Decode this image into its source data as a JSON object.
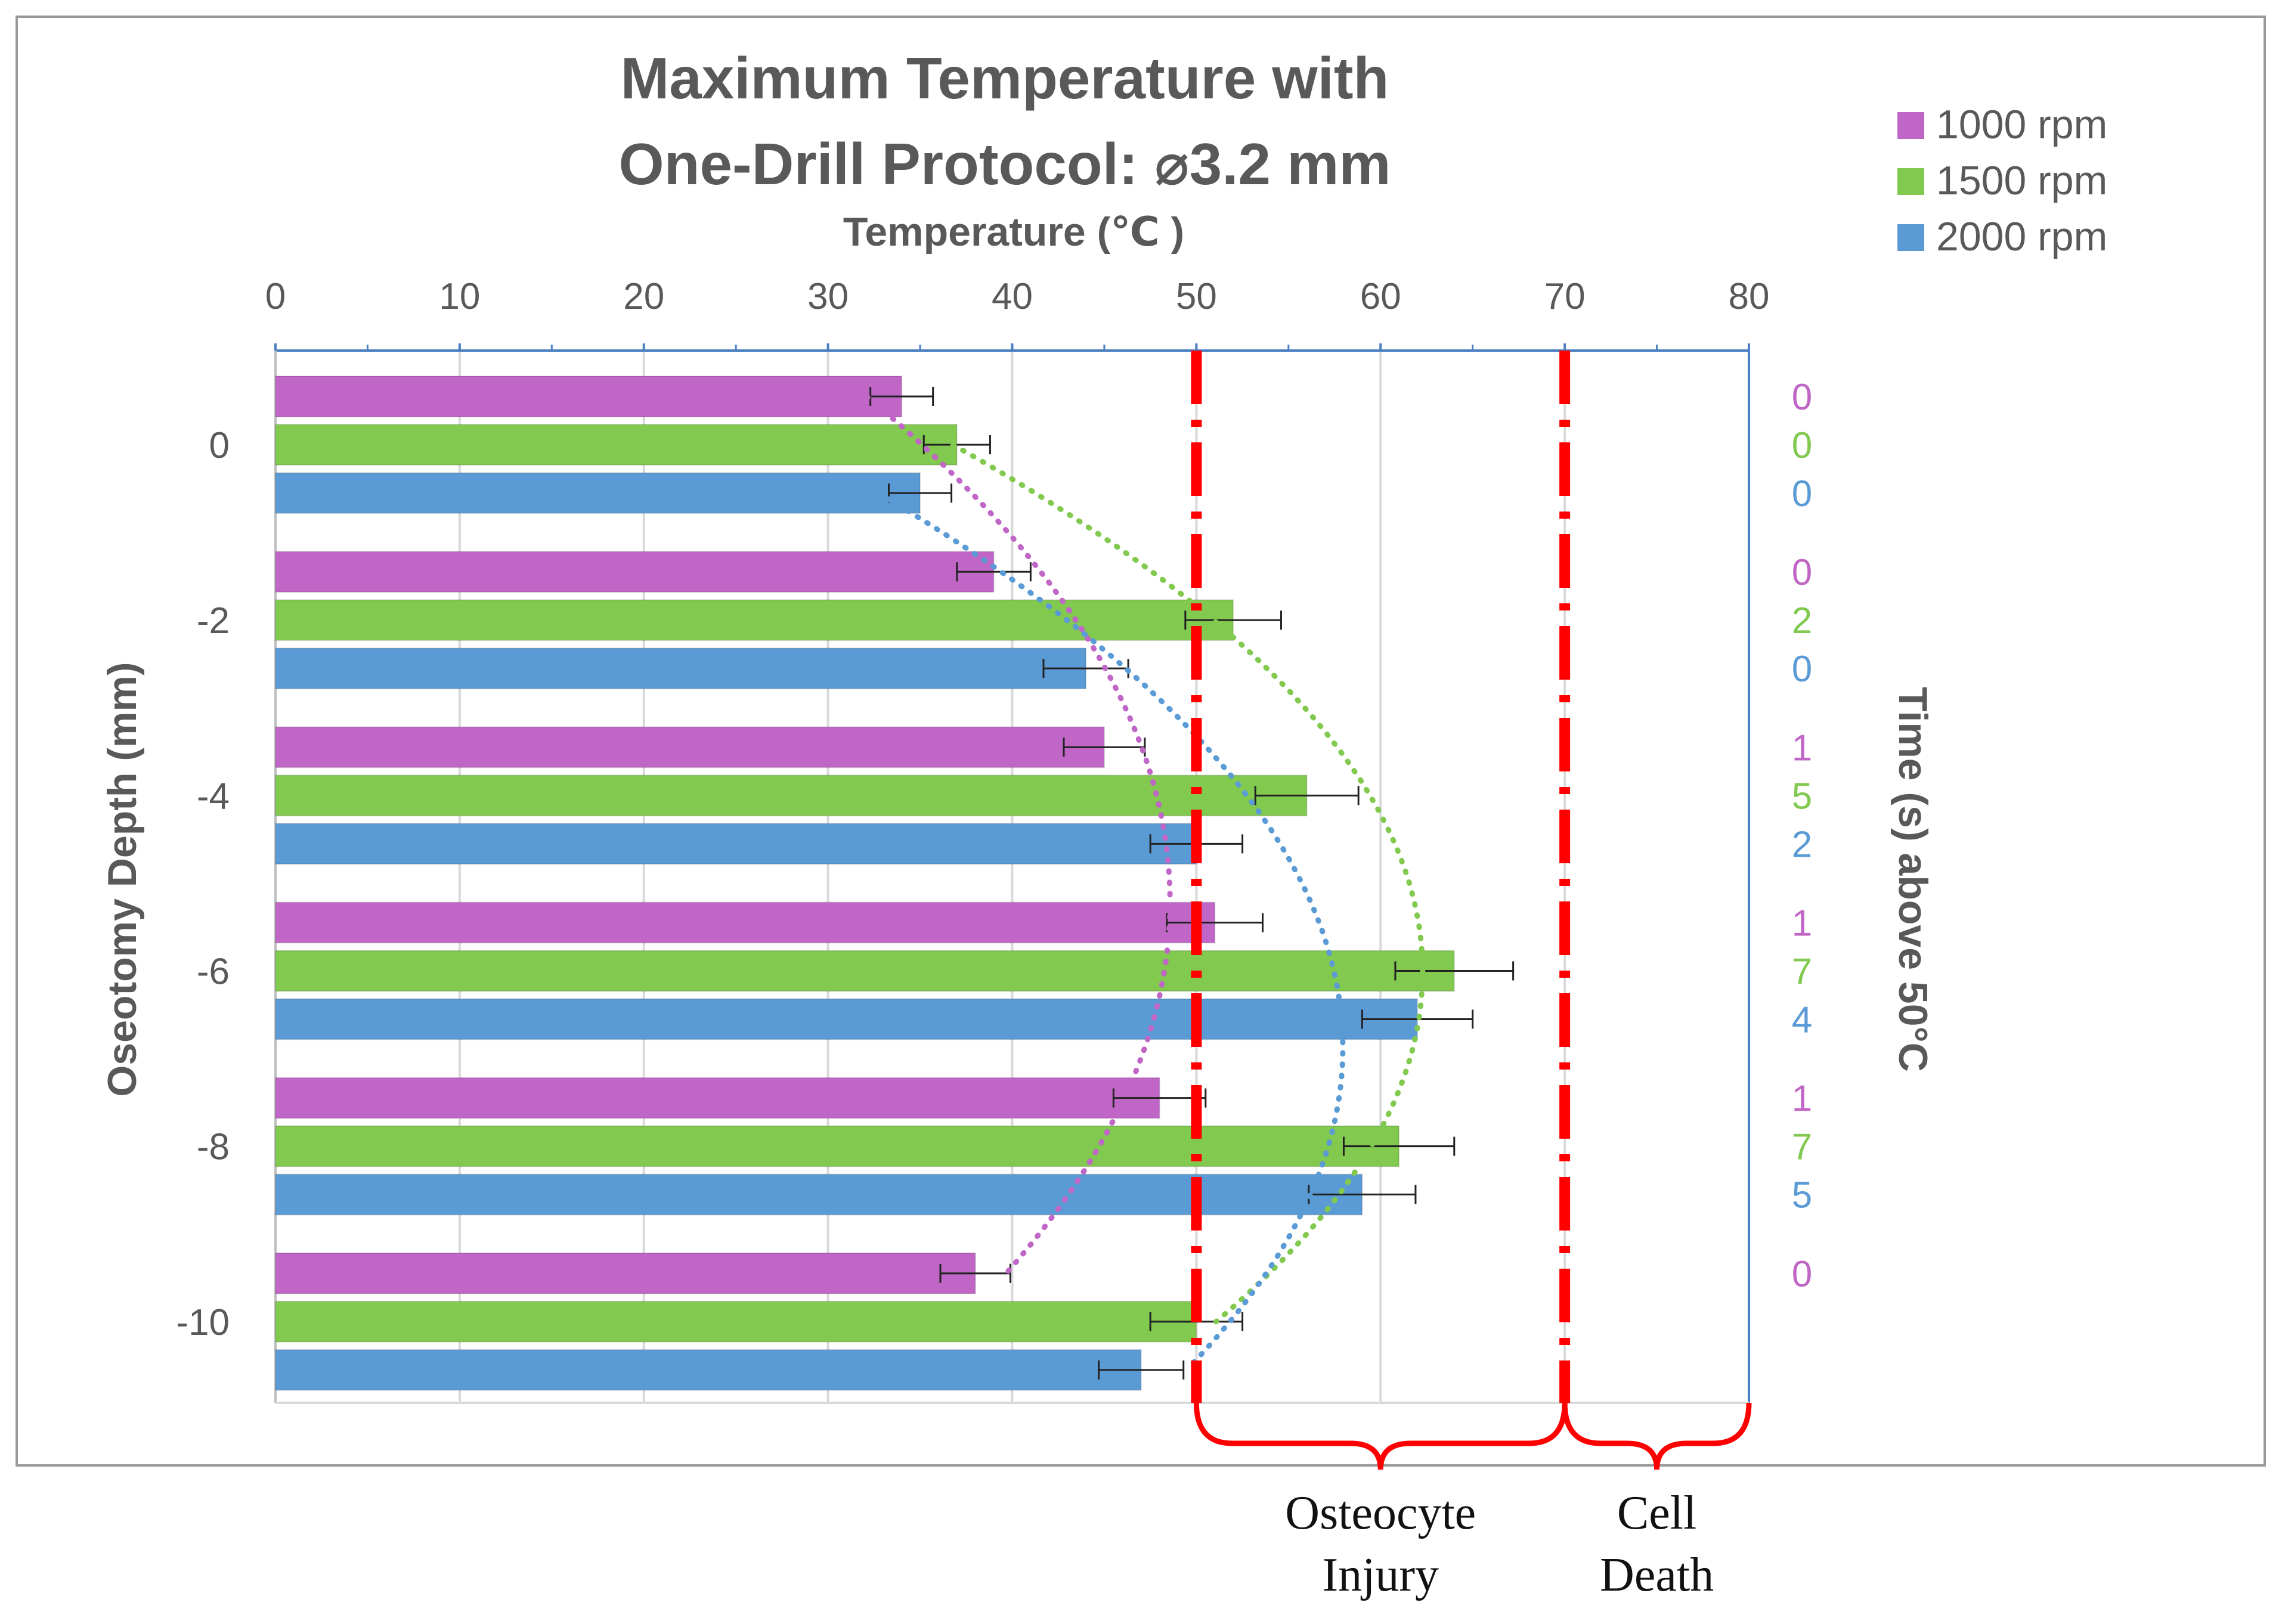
{
  "chart_data": {
    "type": "bar",
    "orientation": "horizontal",
    "title_lines": [
      "Maximum Temperature with",
      "One-Drill Protocol: ⌀3.2 mm"
    ],
    "xlabel": "Temperature (℃ )",
    "ylabel": "Oseotomy Depth (mm)",
    "right_axis_label": "Time (s) above 50°C",
    "xlim": [
      0,
      80
    ],
    "x_ticks": [
      "0",
      "10",
      "20",
      "30",
      "40",
      "50",
      "60",
      "70",
      "80"
    ],
    "categories": [
      "0",
      "-2",
      "-4",
      "-6",
      "-8",
      "-10"
    ],
    "series": [
      {
        "name": "1000 rpm",
        "color": "#c066c6",
        "values": [
          34,
          39,
          45,
          51,
          48,
          38
        ],
        "errors": [
          1.7,
          2.0,
          2.2,
          2.6,
          2.5,
          1.9
        ],
        "time_above_50": [
          "0",
          "0",
          "1",
          "1",
          "1",
          "0"
        ]
      },
      {
        "name": "1500 rpm",
        "color": "#82c94f",
        "values": [
          37,
          52,
          56,
          64,
          61,
          50
        ],
        "errors": [
          1.8,
          2.6,
          2.8,
          3.2,
          3.0,
          2.5
        ],
        "time_above_50": [
          "0",
          "2",
          "5",
          "7",
          "7",
          ""
        ]
      },
      {
        "name": "2000 rpm",
        "color": "#5b9bd5",
        "values": [
          35,
          44,
          50,
          62,
          59,
          47
        ],
        "errors": [
          1.7,
          2.3,
          2.5,
          3.0,
          2.9,
          2.3
        ],
        "time_above_50": [
          "0",
          "0",
          "2",
          "4",
          "5",
          ""
        ]
      }
    ],
    "threshold_lines": [
      {
        "value": 50,
        "color": "#ff0000"
      },
      {
        "value": 70,
        "color": "#ff0000"
      }
    ],
    "zones": [
      {
        "from": 50,
        "to": 70,
        "label_lines": [
          "Osteocyte",
          "Injury"
        ]
      },
      {
        "from": 70,
        "to": 80,
        "label_lines": [
          "Cell",
          "Death"
        ]
      }
    ],
    "trendlines": "dotted polynomial per series",
    "legend_position": "top-right",
    "grid": true
  }
}
